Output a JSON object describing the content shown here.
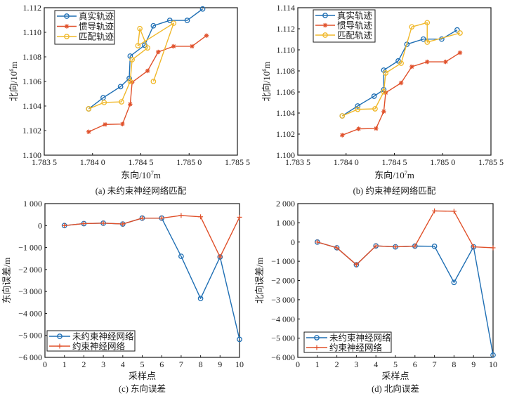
{
  "chart_data": [
    {
      "id": "a",
      "type": "line",
      "caption": "(a) 未约束神经网络匹配",
      "xlabel": "东向/10",
      "xlabel_sup": "7",
      "xlabel_unit": "m",
      "ylabel": "北向/10",
      "ylabel_sup": "6",
      "ylabel_unit": "m",
      "xlim": [
        1.7835,
        1.7855
      ],
      "ylim": [
        1.1,
        1.112
      ],
      "xticks": [
        1.7835,
        1.784,
        1.7845,
        1.785,
        1.7855
      ],
      "xtick_labels": [
        "1.783 5",
        "1.784 0",
        "1.784 5",
        "1.785 0",
        "1.785 5"
      ],
      "yticks": [
        1.1,
        1.102,
        1.104,
        1.106,
        1.108,
        1.11,
        1.112
      ],
      "ytick_labels": [
        "1.100",
        "1.102",
        "1.104",
        "1.106",
        "1.108",
        "1.110",
        "1.112"
      ],
      "legend_position": "top-left",
      "series": [
        {
          "name": "真实轨迹",
          "color": "#1f6fb4",
          "marker": "circle",
          "x": [
            1.78396,
            1.78411,
            1.78429,
            1.78438,
            1.78439,
            1.78454,
            1.78463,
            1.7848,
            1.78498,
            1.78514
          ],
          "y": [
            1.10377,
            1.10467,
            1.10558,
            1.10625,
            1.10806,
            1.10895,
            1.11053,
            1.11097,
            1.11097,
            1.1119
          ]
        },
        {
          "name": "惯导轨迹",
          "color": "#e0502a",
          "marker": "star",
          "x": [
            1.78396,
            1.78413,
            1.78431,
            1.78439,
            1.78441,
            1.78457,
            1.78468,
            1.78484,
            1.78503,
            1.78518
          ],
          "y": [
            1.1019,
            1.1025,
            1.10253,
            1.10415,
            1.10593,
            1.10686,
            1.1084,
            1.10886,
            1.10886,
            1.10973
          ]
        },
        {
          "name": "匹配轨迹",
          "color": "#f0b82a",
          "marker": "circle",
          "x": [
            1.78396,
            1.78412,
            1.7843,
            1.78439,
            1.78441,
            1.78457,
            1.78449,
            1.78447,
            1.78484,
            1.78463
          ],
          "y": [
            1.10377,
            1.10429,
            1.10434,
            1.106,
            1.10777,
            1.10873,
            1.1103,
            1.10891,
            1.11074,
            1.106
          ]
        }
      ]
    },
    {
      "id": "b",
      "type": "line",
      "caption": "(b) 约束神经网络匹配",
      "xlabel": "东向/10",
      "xlabel_sup": "7",
      "xlabel_unit": "m",
      "ylabel": "北向/10",
      "ylabel_sup": "6",
      "ylabel_unit": "m",
      "xlim": [
        1.7835,
        1.7855
      ],
      "ylim": [
        1.1,
        1.114
      ],
      "xticks": [
        1.7835,
        1.784,
        1.7845,
        1.785,
        1.7855
      ],
      "xtick_labels": [
        "1.783 5",
        "1.784 0",
        "1.784 5",
        "1.785 0",
        "1.785 5"
      ],
      "yticks": [
        1.1,
        1.102,
        1.104,
        1.106,
        1.108,
        1.11,
        1.112,
        1.114
      ],
      "ytick_labels": [
        "1.100",
        "1.102",
        "1.104",
        "1.106",
        "1.108",
        "1.110",
        "1.112",
        "1.114"
      ],
      "legend_position": "top-left",
      "series": [
        {
          "name": "真实轨迹",
          "color": "#1f6fb4",
          "marker": "circle",
          "x": [
            1.78396,
            1.78412,
            1.78429,
            1.78439,
            1.78439,
            1.78454,
            1.78463,
            1.7848,
            1.78499,
            1.78515
          ],
          "y": [
            1.10373,
            1.10467,
            1.1056,
            1.10622,
            1.10807,
            1.10895,
            1.11053,
            1.11102,
            1.11102,
            1.11189
          ]
        },
        {
          "name": "惯导轨迹",
          "color": "#e0502a",
          "marker": "star",
          "x": [
            1.78396,
            1.78413,
            1.78431,
            1.78439,
            1.78441,
            1.78457,
            1.78468,
            1.78484,
            1.78503,
            1.78518
          ],
          "y": [
            1.1019,
            1.1025,
            1.10253,
            1.10415,
            1.10593,
            1.10686,
            1.1084,
            1.10886,
            1.10886,
            1.10973
          ]
        },
        {
          "name": "匹配轨迹",
          "color": "#f0b82a",
          "marker": "circle",
          "x": [
            1.78396,
            1.78412,
            1.7843,
            1.78439,
            1.78441,
            1.78457,
            1.78468,
            1.78484,
            1.78484,
            1.78518
          ],
          "y": [
            1.10373,
            1.10435,
            1.1044,
            1.10602,
            1.1078,
            1.10873,
            1.11218,
            1.11258,
            1.11073,
            1.1116
          ]
        }
      ]
    },
    {
      "id": "c",
      "type": "line",
      "caption": "(c) 东向误差",
      "xlabel": "采样点",
      "ylabel": "东向误差/m",
      "xlim": [
        0,
        10
      ],
      "ylim": [
        -6000,
        1000
      ],
      "xticks": [
        0,
        1,
        2,
        3,
        4,
        5,
        6,
        7,
        8,
        9,
        10
      ],
      "xtick_labels": [
        "0",
        "1",
        "2",
        "3",
        "4",
        "5",
        "6",
        "7",
        "8",
        "9",
        "10"
      ],
      "yticks": [
        -6000,
        -5000,
        -4000,
        -3000,
        -2000,
        -1000,
        0,
        1000
      ],
      "ytick_labels": [
        "−6 000",
        "−5 000",
        "−4 000",
        "−3 000",
        "−2 000",
        "−1 000",
        "0",
        "1 000"
      ],
      "legend_position": "bottom-left",
      "series": [
        {
          "name": "未约束神经网络",
          "color": "#1f6fb4",
          "marker": "circle",
          "x": [
            1,
            2,
            3,
            4,
            5,
            6,
            7,
            8,
            9,
            10
          ],
          "y": [
            0,
            90,
            110,
            70,
            340,
            340,
            -1400,
            -3320,
            -1430,
            -5180
          ]
        },
        {
          "name": "约束神经网络",
          "color": "#e0502a",
          "marker": "plus",
          "x": [
            1,
            2,
            3,
            4,
            5,
            6,
            7,
            8,
            9,
            10
          ],
          "y": [
            0,
            90,
            110,
            70,
            340,
            340,
            460,
            400,
            -1430,
            380
          ]
        }
      ]
    },
    {
      "id": "d",
      "type": "line",
      "caption": "(d) 北向误差",
      "xlabel": "采样点",
      "ylabel": "北向误差/m",
      "xlim": [
        0,
        10
      ],
      "ylim": [
        -6000,
        2000
      ],
      "xticks": [
        0,
        1,
        2,
        3,
        4,
        5,
        6,
        7,
        8,
        9,
        10
      ],
      "xtick_labels": [
        "0",
        "1",
        "2",
        "3",
        "4",
        "5",
        "6",
        "7",
        "8",
        "9",
        "10"
      ],
      "yticks": [
        -6000,
        -5000,
        -4000,
        -3000,
        -2000,
        -1000,
        0,
        1000,
        2000
      ],
      "ytick_labels": [
        "−6 000",
        "−5 000",
        "−4 000",
        "−3 000",
        "−2 000",
        "−1 000",
        "0",
        "1 000",
        "2 000"
      ],
      "legend_position": "bottom-left",
      "series": [
        {
          "name": "未约束神经网络",
          "color": "#1f6fb4",
          "marker": "circle",
          "x": [
            1,
            2,
            3,
            4,
            5,
            6,
            7,
            8,
            9,
            10
          ],
          "y": [
            0,
            -300,
            -1180,
            -200,
            -250,
            -210,
            -220,
            -2100,
            -250,
            -5880
          ]
        },
        {
          "name": "约束神经网络",
          "color": "#e0502a",
          "marker": "plus",
          "x": [
            1,
            2,
            3,
            4,
            5,
            6,
            7,
            8,
            9,
            10
          ],
          "y": [
            0,
            -300,
            -1180,
            -200,
            -250,
            -210,
            1620,
            1600,
            -250,
            -300
          ]
        }
      ]
    }
  ]
}
